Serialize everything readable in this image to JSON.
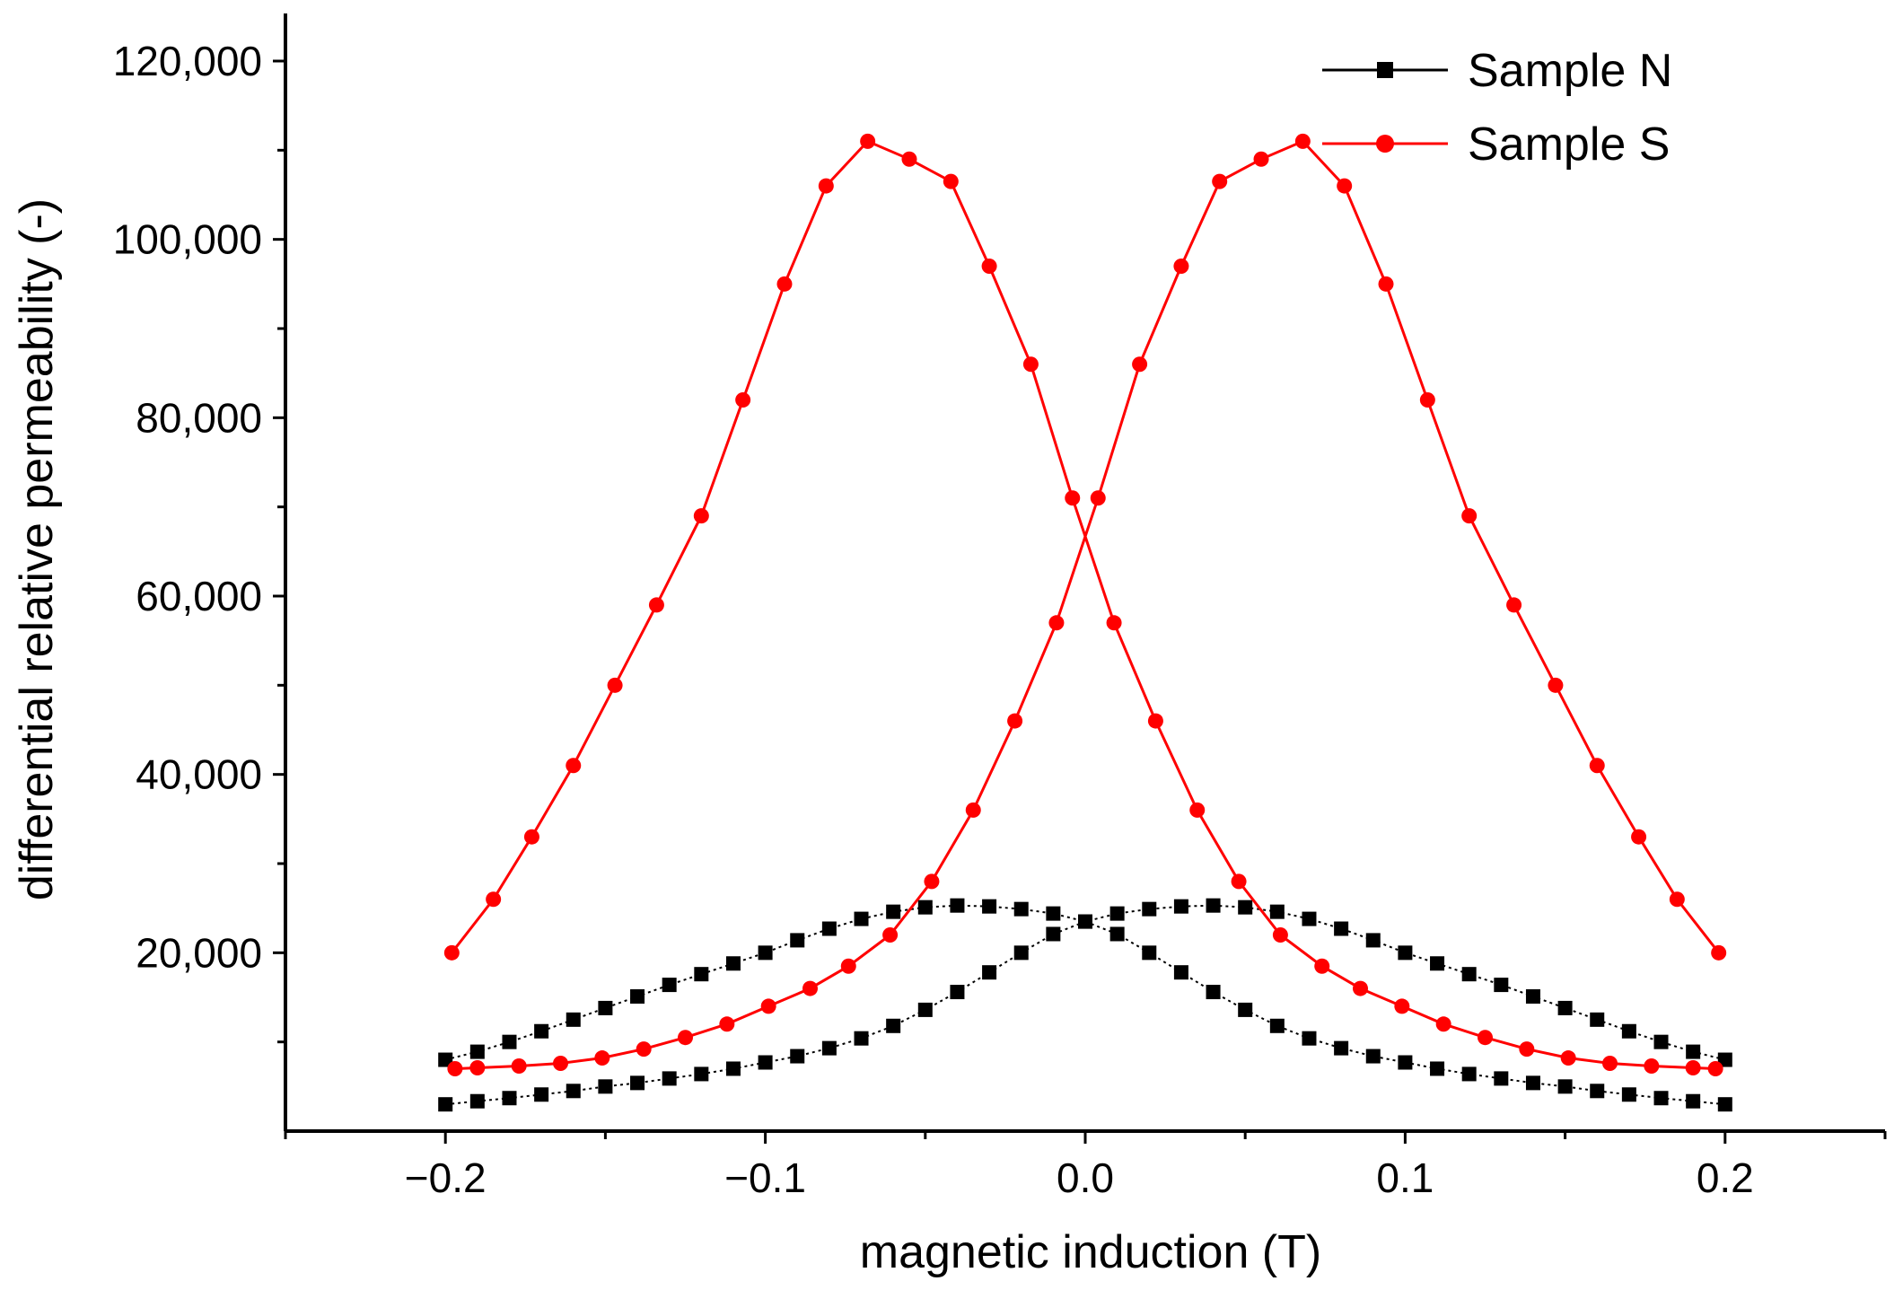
{
  "chart_data": {
    "type": "scatter",
    "title": "",
    "xlabel": "magnetic induction (T)",
    "ylabel": "differential relative permeability (-)",
    "xlim": [
      -0.25,
      0.25
    ],
    "ylim": [
      0,
      120000
    ],
    "x_ticks": [
      -0.2,
      -0.1,
      0.0,
      0.1,
      0.2
    ],
    "x_tick_labels": [
      "−0.2",
      "−0.1",
      "0.0",
      "0.1",
      "0.2"
    ],
    "y_ticks": [
      20000,
      40000,
      60000,
      80000,
      100000,
      120000
    ],
    "y_tick_labels": [
      "20,000",
      "40,000",
      "60,000",
      "80,000",
      "100,000",
      "120,000"
    ],
    "grid": false,
    "legend_position": "top-right",
    "series": [
      {
        "name": "Sample N",
        "color": "#000000",
        "marker": "square",
        "line_style": "dotted",
        "branches": [
          {
            "x": [
              -0.2,
              -0.19,
              -0.18,
              -0.17,
              -0.16,
              -0.15,
              -0.14,
              -0.13,
              -0.12,
              -0.11,
              -0.1,
              -0.09,
              -0.08,
              -0.07,
              -0.06,
              -0.05,
              -0.04,
              -0.03,
              -0.02,
              -0.01,
              0.0,
              0.01,
              0.02,
              0.03,
              0.04,
              0.05,
              0.06,
              0.07,
              0.08,
              0.09,
              0.1,
              0.11,
              0.12,
              0.13,
              0.14,
              0.15,
              0.16,
              0.17,
              0.18,
              0.19,
              0.2
            ],
            "y": [
              8000,
              8900,
              10000,
              11200,
              12500,
              13800,
              15100,
              16400,
              17600,
              18800,
              20000,
              21400,
              22700,
              23800,
              24600,
              25100,
              25300,
              25200,
              24900,
              24400,
              23500,
              22100,
              20000,
              17800,
              15600,
              13600,
              11800,
              10400,
              9300,
              8400,
              7700,
              7000,
              6400,
              5900,
              5400,
              5000,
              4500,
              4100,
              3700,
              3350,
              3000
            ]
          },
          {
            "x": [
              -0.2,
              -0.19,
              -0.18,
              -0.17,
              -0.16,
              -0.15,
              -0.14,
              -0.13,
              -0.12,
              -0.11,
              -0.1,
              -0.09,
              -0.08,
              -0.07,
              -0.06,
              -0.05,
              -0.04,
              -0.03,
              -0.02,
              -0.01,
              0.0,
              0.01,
              0.02,
              0.03,
              0.04,
              0.05,
              0.06,
              0.07,
              0.08,
              0.09,
              0.1,
              0.11,
              0.12,
              0.13,
              0.14,
              0.15,
              0.16,
              0.17,
              0.18,
              0.19,
              0.2
            ],
            "y": [
              3000,
              3350,
              3700,
              4100,
              4500,
              5000,
              5400,
              5900,
              6400,
              7000,
              7700,
              8400,
              9300,
              10400,
              11800,
              13600,
              15600,
              17800,
              20000,
              22100,
              23500,
              24400,
              24900,
              25200,
              25300,
              25100,
              24600,
              23800,
              22700,
              21400,
              20000,
              18800,
              17600,
              16400,
              15100,
              13800,
              12500,
              11200,
              10000,
              8900,
              8000
            ]
          }
        ]
      },
      {
        "name": "Sample S",
        "color": "#ff0000",
        "marker": "circle",
        "line_style": "solid",
        "branches": [
          {
            "x": [
              -0.198,
              -0.185,
              -0.173,
              -0.16,
              -0.147,
              -0.134,
              -0.12,
              -0.107,
              -0.094,
              -0.081,
              -0.068,
              -0.055,
              -0.042,
              -0.03,
              -0.017,
              -0.004,
              0.009,
              0.022,
              0.035,
              0.048,
              0.061,
              0.074,
              0.086,
              0.099,
              0.112,
              0.125,
              0.138,
              0.151,
              0.164,
              0.177,
              0.19,
              0.197
            ],
            "y": [
              20000,
              26000,
              33000,
              41000,
              50000,
              59000,
              69000,
              82000,
              95000,
              106000,
              111000,
              109000,
              106500,
              97000,
              86000,
              71000,
              57000,
              46000,
              36000,
              28000,
              22000,
              18500,
              16000,
              14000,
              12000,
              10500,
              9200,
              8200,
              7600,
              7300,
              7100,
              7000
            ]
          },
          {
            "x": [
              -0.197,
              -0.19,
              -0.177,
              -0.164,
              -0.151,
              -0.138,
              -0.125,
              -0.112,
              -0.099,
              -0.086,
              -0.074,
              -0.061,
              -0.048,
              -0.035,
              -0.022,
              -0.009,
              0.004,
              0.017,
              0.03,
              0.042,
              0.055,
              0.068,
              0.081,
              0.094,
              0.107,
              0.12,
              0.134,
              0.147,
              0.16,
              0.173,
              0.185,
              0.198
            ],
            "y": [
              7000,
              7100,
              7300,
              7600,
              8200,
              9200,
              10500,
              12000,
              14000,
              16000,
              18500,
              22000,
              28000,
              36000,
              46000,
              57000,
              71000,
              86000,
              97000,
              106500,
              109000,
              111000,
              106000,
              95000,
              82000,
              69000,
              59000,
              50000,
              41000,
              33000,
              26000,
              20000
            ]
          }
        ]
      }
    ]
  }
}
